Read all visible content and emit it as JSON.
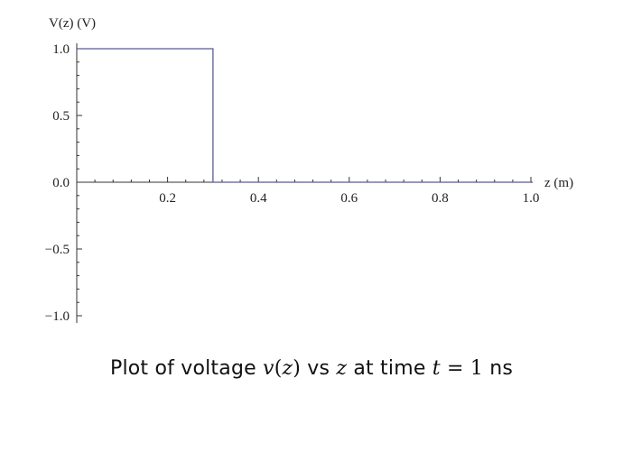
{
  "chart_data": {
    "type": "line",
    "title": "",
    "xlabel": "z (m)",
    "ylabel": "V(z) (V)",
    "xlim": [
      0,
      1.0
    ],
    "ylim": [
      -1.0,
      1.0
    ],
    "x_ticks": [
      "0.2",
      "0.4",
      "0.6",
      "0.8",
      "1.0"
    ],
    "x_tick_values": [
      0.2,
      0.4,
      0.6,
      0.8,
      1.0
    ],
    "y_ticks": [
      "1.0",
      "0.5",
      "0.0",
      "−0.5",
      "−1.0"
    ],
    "y_tick_values": [
      1.0,
      0.5,
      0.0,
      -0.5,
      -1.0
    ],
    "grid": false,
    "series": [
      {
        "x": [
          0,
          0.3,
          0.3,
          1.0
        ],
        "y": [
          1.0,
          1.0,
          0.0,
          0.0
        ],
        "color": "#5b5b8f"
      }
    ]
  },
  "caption": {
    "prefix": "Plot of voltage ",
    "func": "v",
    "arg_open": "(",
    "var1": "z",
    "arg_close": ")",
    "mid": " vs ",
    "var2": "z",
    "mid2": " at time ",
    "tvar": "t",
    "eq": " = 1",
    "unit": " ns"
  }
}
